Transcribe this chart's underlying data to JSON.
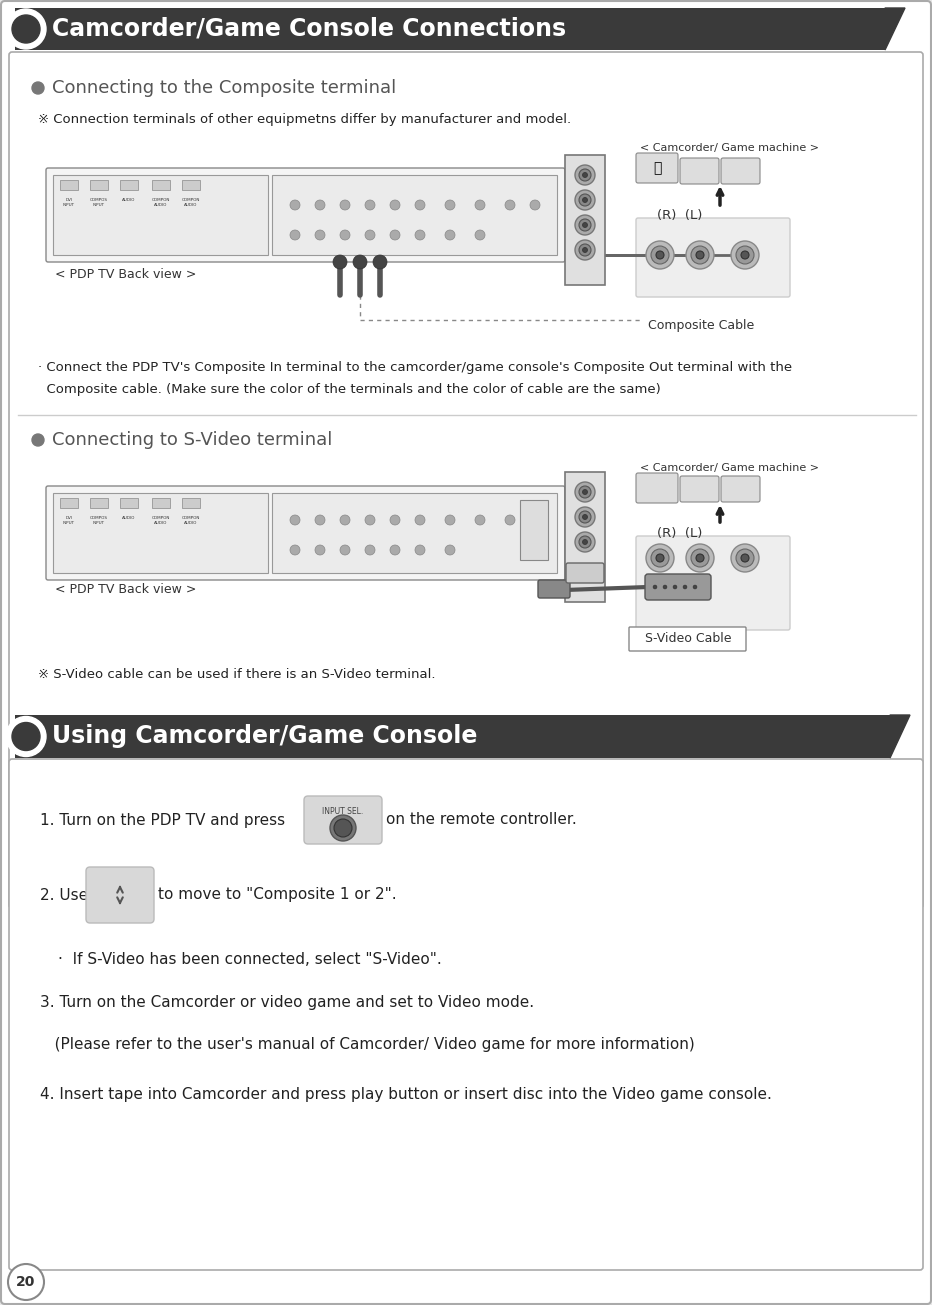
{
  "title1": "Camcorder/Game Console Connections",
  "title2": "Using Camcorder/Game Console",
  "header_bg": "#3a3a3a",
  "header_text_color": "#ffffff",
  "outer_bg": "#e8e8e8",
  "section1_heading": "Connecting to the Composite terminal",
  "section2_heading": "Connecting to S-Video terminal",
  "note1": "※ Connection terminals of other equipmetns differ by manufacturer and model.",
  "label_pdp1": "< PDP TV Back view >",
  "label_pdp2": "< PDP TV Back view >",
  "label_cam1": "< Camcorder/ Game machine >",
  "label_cam2": "< Camcorder/ Game machine >",
  "label_composite_cable": "Composite Cable",
  "label_svideo_cable": "S-Video Cable",
  "rl_label1": "(R)  (L)",
  "rl_label2": "(R)  (L)",
  "composite_desc1": "· Connect the PDP TV's Composite In terminal to the camcorder/game console's Composite Out terminal with the",
  "composite_desc2": "  Composite cable. (Make sure the color of the terminals and the color of cable are the same)",
  "svideo_note": "※ S-Video cable can be used if there is an S-Video terminal.",
  "step1": "1. Turn on the PDP TV and press",
  "step1b": "on the remote controller.",
  "step2": "2. Use",
  "step2b": "to move to \"Composite 1 or 2\".",
  "step2c": "·  If S-Video has been connected, select \"S-Video\".",
  "step3": "3. Turn on the Camcorder or video game and set to Video mode.",
  "step3b": "   (Please refer to the user's manual of Camcorder/ Video game for more information)",
  "step4": "4. Insert tape into Camcorder and press play button or insert disc into the Video game console.",
  "page_num": "20",
  "bullet_color": "#666666",
  "section_heading_color": "#555555",
  "note_color": "#222222",
  "desc_color": "#222222",
  "divider_color": "#cccccc",
  "text_color": "#222222"
}
